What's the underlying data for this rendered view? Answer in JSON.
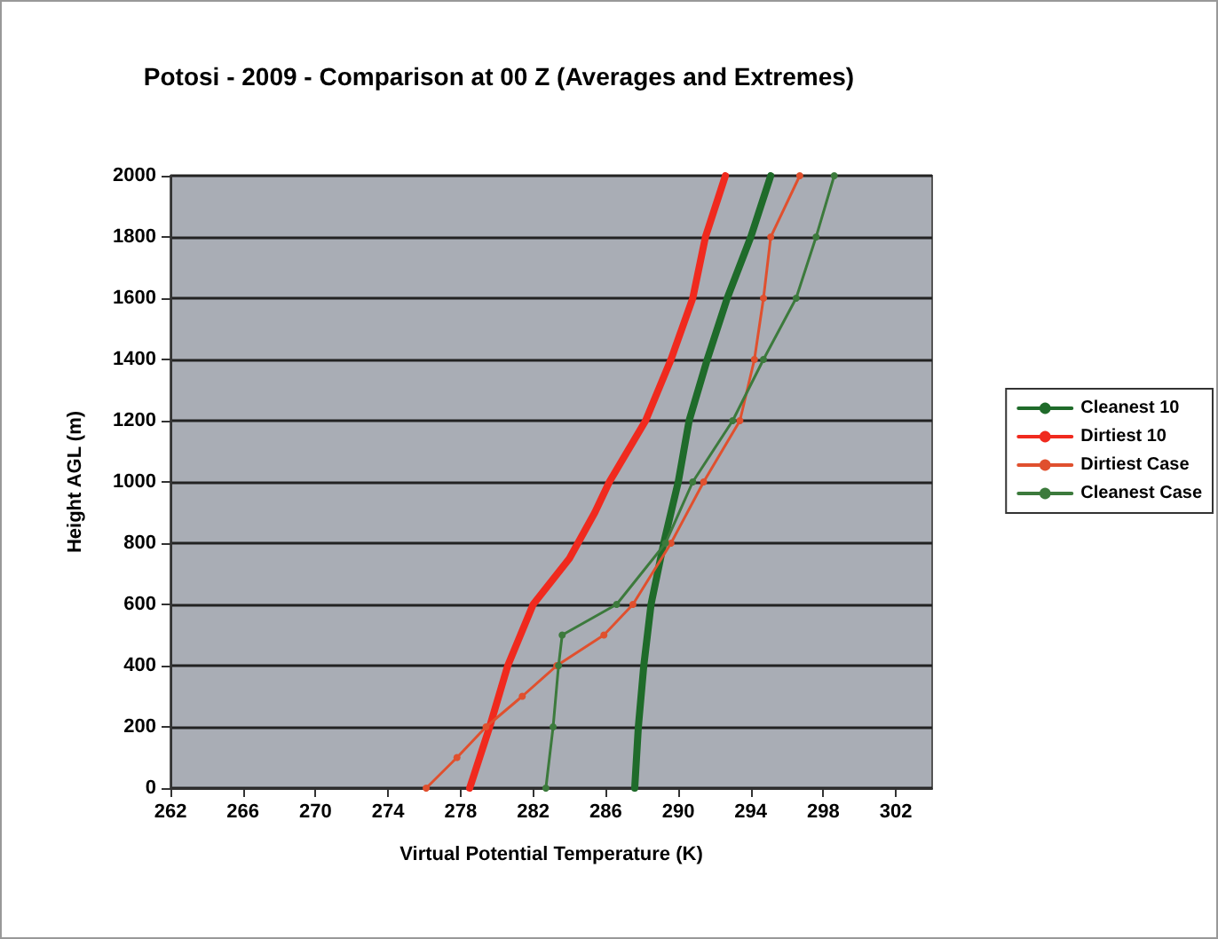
{
  "chart_data": {
    "type": "line",
    "title": "Potosi - 2009 - Comparison at 00 Z (Averages and Extremes)",
    "xlabel": "Virtual Potential Temperature (K)",
    "ylabel": "Height AGL (m)",
    "xlim": [
      262,
      304
    ],
    "xticks": [
      262,
      266,
      270,
      274,
      278,
      282,
      286,
      290,
      294,
      298,
      302
    ],
    "ylim": [
      0,
      2000
    ],
    "yticks": [
      0,
      200,
      400,
      600,
      800,
      1000,
      1200,
      1400,
      1600,
      1800,
      2000
    ],
    "grid": "y",
    "legend": "right",
    "series": [
      {
        "name": "Cleanest 10",
        "color": "#1f6b2a",
        "marker": "none",
        "x": [
          287.6,
          287.8,
          288.1,
          288.5,
          289.2,
          290.0,
          290.6,
          291.6,
          292.7,
          294.0,
          295.1
        ],
        "values": [
          0,
          200,
          400,
          600,
          800,
          1000,
          1200,
          1400,
          1600,
          1800,
          2000
        ]
      },
      {
        "name": "Dirtiest 10",
        "color": "#f02a1e",
        "marker": "none",
        "x": [
          278.5,
          279.6,
          280.6,
          282.0,
          284.0,
          285.4,
          286.2,
          287.2,
          288.2,
          289.6,
          290.8,
          291.5,
          292.6
        ],
        "values": [
          0,
          200,
          400,
          600,
          750,
          900,
          1000,
          1100,
          1200,
          1400,
          1600,
          1800,
          2000
        ]
      },
      {
        "name": "Dirtiest Case",
        "color": "#e0502e",
        "marker": "circle",
        "x": [
          276.1,
          277.8,
          279.4,
          281.4,
          283.3,
          285.9,
          287.5,
          289.6,
          291.4,
          293.4,
          294.2,
          294.7,
          295.1,
          296.7
        ],
        "values": [
          0,
          100,
          200,
          300,
          400,
          500,
          600,
          800,
          1000,
          1200,
          1400,
          1600,
          1800,
          2000
        ]
      },
      {
        "name": "Cleanest Case",
        "color": "#3c7a3c",
        "marker": "circle",
        "x": [
          282.7,
          283.1,
          283.4,
          283.6,
          286.6,
          289.3,
          290.8,
          293.0,
          294.7,
          296.5,
          297.6,
          298.6
        ],
        "values": [
          0,
          200,
          400,
          500,
          600,
          800,
          1000,
          1200,
          1400,
          1600,
          1800,
          2000
        ]
      }
    ]
  }
}
